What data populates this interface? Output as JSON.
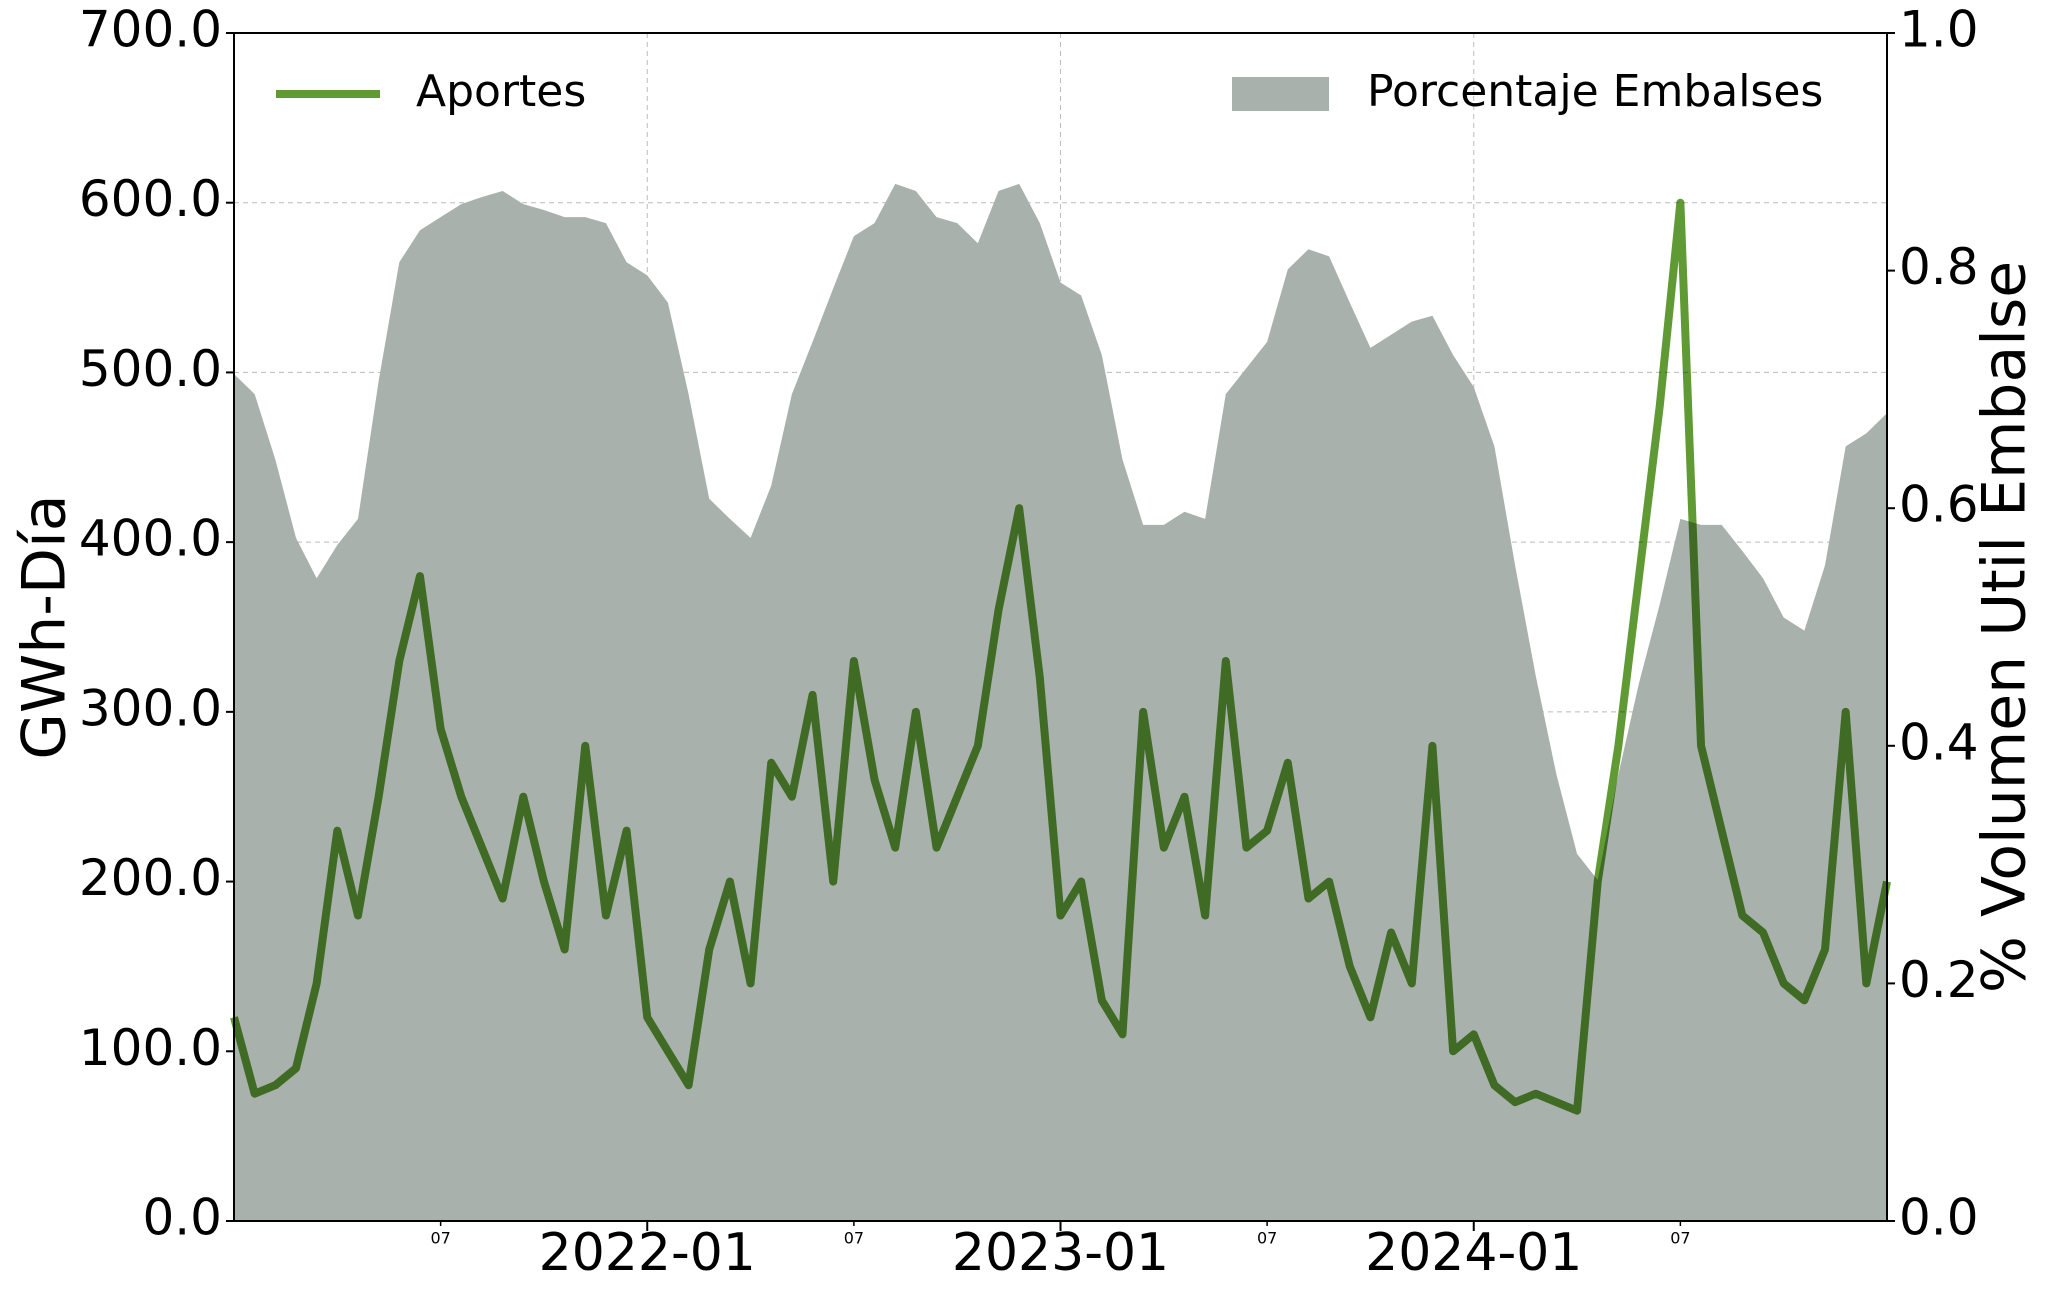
{
  "chart_data": {
    "type": "line",
    "ylabel": "GWh-Día",
    "y2label": "% Volumen Util Embalse",
    "grid": true,
    "xlim": [
      2021,
      2025
    ],
    "xticks": [
      {
        "value": 2022,
        "label": "2022-01"
      },
      {
        "value": 2023,
        "label": "2023-01"
      },
      {
        "value": 2024,
        "label": "2024-01"
      }
    ],
    "xticks_minor": [
      {
        "value": 2021.5,
        "label": "07"
      },
      {
        "value": 2022.5,
        "label": "07"
      },
      {
        "value": 2023.5,
        "label": "07"
      },
      {
        "value": 2024.5,
        "label": "07"
      }
    ],
    "ylim": [
      0,
      700
    ],
    "yticks": [
      {
        "value": 0,
        "label": "0.0"
      },
      {
        "value": 100,
        "label": "100.0"
      },
      {
        "value": 200,
        "label": "200.0"
      },
      {
        "value": 300,
        "label": "300.0"
      },
      {
        "value": 400,
        "label": "400.0"
      },
      {
        "value": 500,
        "label": "500.0"
      },
      {
        "value": 600,
        "label": "600.0"
      },
      {
        "value": 700,
        "label": "700.0"
      }
    ],
    "y2lim": [
      0,
      1
    ],
    "y2ticks": [
      {
        "value": 0,
        "label": "0.0"
      },
      0.2,
      0.4,
      0.6,
      0.8,
      {
        "value": 1,
        "label": "1.0"
      }
    ],
    "x": [
      2021,
      2021.05,
      2021.1,
      2021.15,
      2021.2,
      2021.25,
      2021.3,
      2021.35,
      2021.4,
      2021.45,
      2021.5,
      2021.55,
      2021.6,
      2021.65,
      2021.7,
      2021.75,
      2021.8,
      2021.85,
      2021.9,
      2021.95,
      2022,
      2022.05,
      2022.1,
      2022.15,
      2022.2,
      2022.25,
      2022.3,
      2022.35,
      2022.4,
      2022.45,
      2022.5,
      2022.55,
      2022.6,
      2022.65,
      2022.7,
      2022.75,
      2022.8,
      2022.85,
      2022.9,
      2022.95,
      2023,
      2023.05,
      2023.1,
      2023.15,
      2023.2,
      2023.25,
      2023.3,
      2023.35,
      2023.4,
      2023.45,
      2023.5,
      2023.55,
      2023.6,
      2023.65,
      2023.7,
      2023.75,
      2023.8,
      2023.85,
      2023.9,
      2023.95,
      2024,
      2024.05,
      2024.1,
      2024.15,
      2024.2,
      2024.25,
      2024.3,
      2024.35,
      2024.4,
      2024.45,
      2024.5,
      2024.55,
      2024.6,
      2024.65,
      2024.7,
      2024.75,
      2024.8,
      2024.85,
      2024.9,
      2024.95,
      2025
    ],
    "series": [
      {
        "name": "Porcentaje Embalses",
        "type": "area",
        "axis": "y2",
        "color": "#a9b1ad",
        "legend": "upper right",
        "values": [
          0.713,
          0.696,
          0.641,
          0.575,
          0.541,
          0.569,
          0.591,
          0.707,
          0.807,
          0.834,
          0.845,
          0.856,
          0.862,
          0.867,
          0.856,
          0.851,
          0.845,
          0.845,
          0.84,
          0.807,
          0.796,
          0.773,
          0.696,
          0.608,
          0.591,
          0.575,
          0.619,
          0.696,
          0.74,
          0.785,
          0.829,
          0.84,
          0.873,
          0.867,
          0.845,
          0.84,
          0.823,
          0.867,
          0.873,
          0.84,
          0.79,
          0.779,
          0.729,
          0.641,
          0.586,
          0.586,
          0.597,
          0.591,
          0.696,
          0.718,
          0.74,
          0.801,
          0.818,
          0.812,
          0.773,
          0.735,
          0.746,
          0.757,
          0.762,
          0.729,
          0.702,
          0.652,
          0.552,
          0.459,
          0.376,
          0.309,
          0.287,
          0.376,
          0.453,
          0.519,
          0.591,
          0.586,
          0.586,
          0.564,
          0.541,
          0.508,
          0.497,
          0.552,
          0.652,
          0.663,
          0.68
        ]
      },
      {
        "name": "Aportes",
        "type": "line",
        "axis": "y",
        "color": "#5f9a34",
        "legend": "upper left",
        "values": [
          120,
          75,
          80,
          90,
          140,
          230,
          180,
          250,
          330,
          380,
          290,
          250,
          220,
          190,
          250,
          200,
          160,
          280,
          180,
          230,
          120,
          100,
          80,
          160,
          200,
          140,
          270,
          250,
          310,
          200,
          330,
          260,
          220,
          300,
          220,
          250,
          280,
          360,
          420,
          320,
          180,
          200,
          130,
          110,
          300,
          220,
          250,
          180,
          330,
          220,
          230,
          270,
          190,
          200,
          150,
          120,
          170,
          140,
          280,
          100,
          110,
          80,
          70,
          75,
          70,
          65,
          200,
          280,
          380,
          480,
          600,
          280,
          230,
          180,
          170,
          140,
          130,
          160,
          300,
          140,
          200
        ]
      }
    ]
  }
}
